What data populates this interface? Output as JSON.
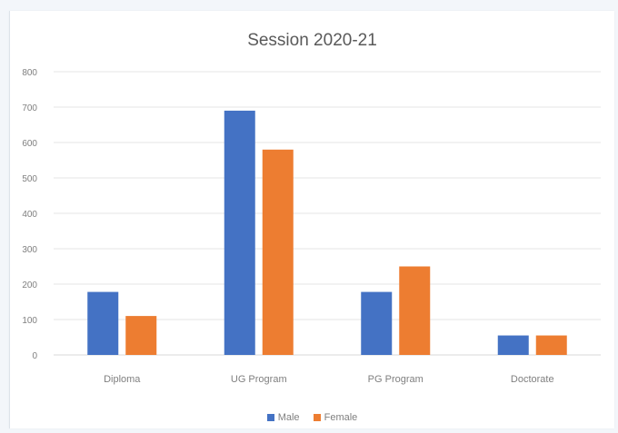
{
  "chart_data": {
    "type": "bar",
    "title": "Session 2020-21",
    "categories": [
      "Diploma",
      "UG Program",
      "PG Program",
      "Doctorate"
    ],
    "series": [
      {
        "name": "Male",
        "color": "#4472c4",
        "values": [
          178,
          690,
          178,
          55
        ]
      },
      {
        "name": "Female",
        "color": "#ed7d31",
        "values": [
          110,
          580,
          250,
          55
        ]
      }
    ],
    "ylim": [
      0,
      800
    ],
    "yticks": [
      0,
      100,
      200,
      300,
      400,
      500,
      600,
      700,
      800
    ],
    "grid": true,
    "legend_position": "bottom"
  }
}
